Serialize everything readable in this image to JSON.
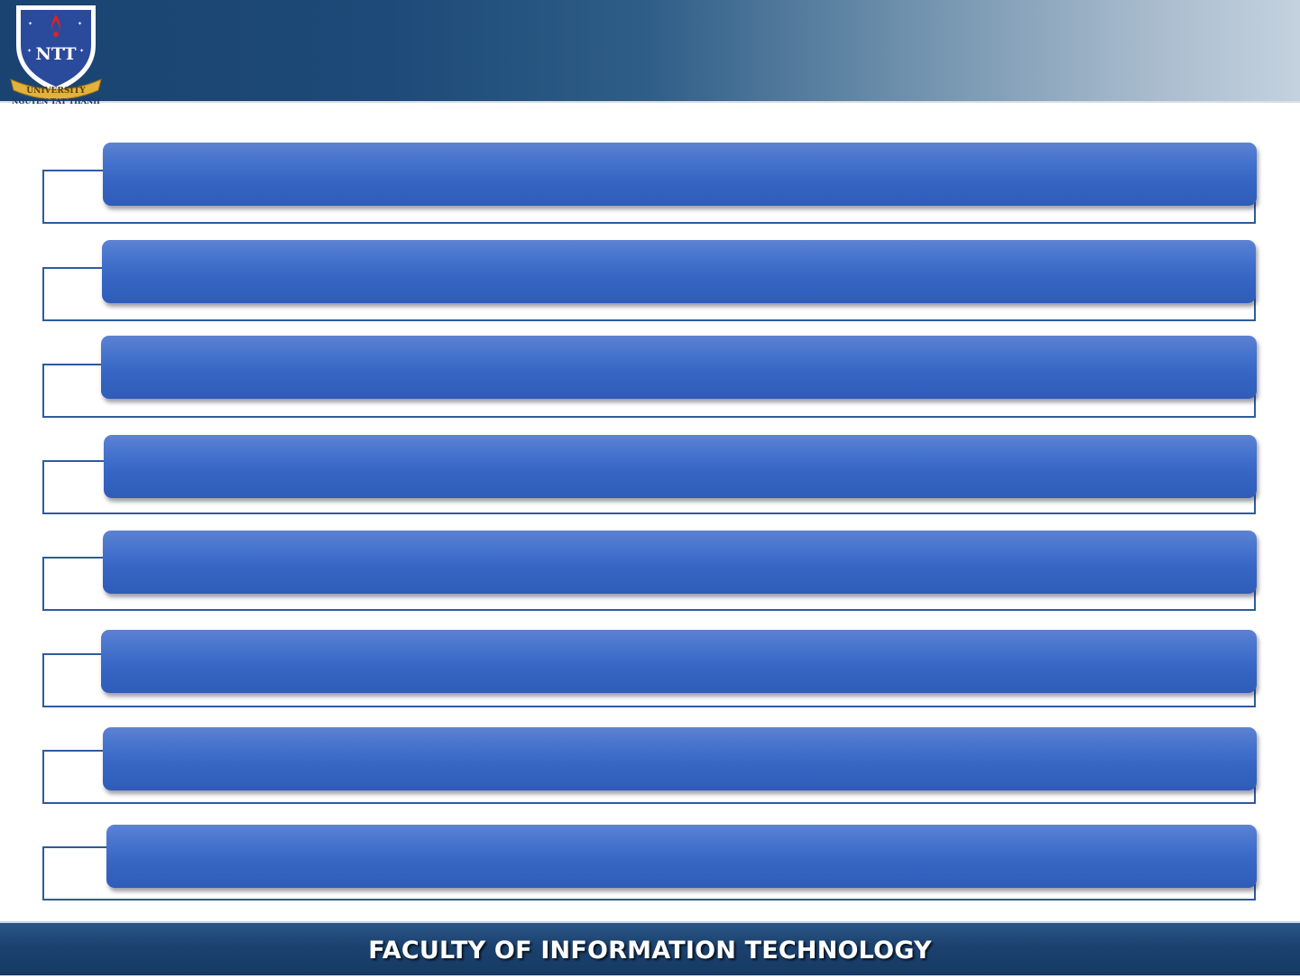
{
  "header": {
    "logo": {
      "icon": "ntt-university-shield-icon",
      "monogram": "NTT",
      "ribbon_text": "UNIVERSITY",
      "caption": "NGUYEN TAT THANH"
    }
  },
  "list": {
    "items": [
      {
        "label": ""
      },
      {
        "label": ""
      },
      {
        "label": ""
      },
      {
        "label": ""
      },
      {
        "label": ""
      },
      {
        "label": ""
      },
      {
        "label": ""
      },
      {
        "label": ""
      }
    ]
  },
  "footer": {
    "title": "FACULTY OF INFORMATION TECHNOLOGY"
  },
  "colors": {
    "header_dark": "#1a4371",
    "header_light": "#c4d2df",
    "bar_blue": "#3665c4",
    "outline_blue": "#2e5b9c",
    "footer_blue": "#1b416e"
  }
}
